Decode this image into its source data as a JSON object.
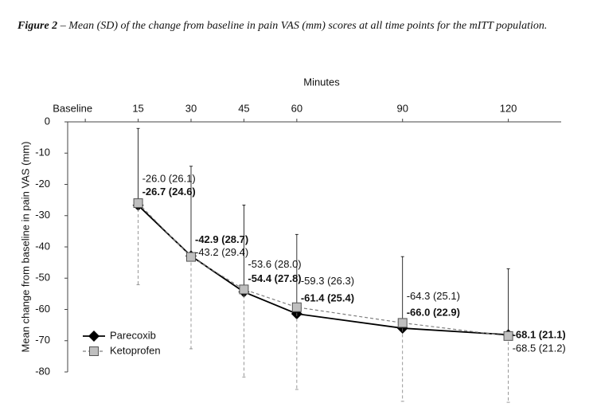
{
  "chart_data": {
    "type": "line",
    "figure_label": "Figure 2",
    "title": "– Mean (SD) of the change from baseline in pain VAS (mm) scores at all time points for the mITT population.",
    "x_label": "Minutes",
    "y_label": "Mean change from baseline in pain VAS (mm)",
    "x": [
      15,
      30,
      45,
      60,
      90,
      120
    ],
    "xlim": [
      -5,
      135
    ],
    "xticks": [
      {
        "value": 0,
        "label": "Baseline"
      },
      15,
      30,
      45,
      60,
      90,
      120
    ],
    "ylim": [
      0,
      -80
    ],
    "yticks": [
      0,
      -10,
      -20,
      -30,
      -40,
      -50,
      -60,
      -70,
      -80
    ],
    "legend": "bottom-left",
    "series": [
      {
        "name": "Parecoxib",
        "color": "#000000",
        "marker": "diamond",
        "line": "solid",
        "error_direction": "up",
        "values": [
          -26.7,
          -42.9,
          -54.4,
          -61.4,
          -66.0,
          -68.1
        ],
        "errors": [
          24.6,
          28.7,
          27.8,
          25.4,
          22.9,
          21.1
        ],
        "value_labels": [
          "-26.7 (24.6)",
          "-42.9 (28.7)",
          "-54.4 (27.8)",
          "-61.4 (25.4)",
          "-66.0 (22.9)",
          "-68.1 (21.1)"
        ]
      },
      {
        "name": "Ketoprofen",
        "color": "#7f7f7f",
        "marker": "square",
        "line": "dashed",
        "error_direction": "down",
        "values": [
          -26.0,
          -43.2,
          -53.6,
          -59.3,
          -64.3,
          -68.5
        ],
        "errors": [
          26.1,
          29.4,
          28.0,
          26.3,
          25.1,
          21.2
        ],
        "value_labels": [
          "-26.0 (26.1)",
          "-43.2 (29.4)",
          "-53.6 (28.0)",
          "-59.3 (26.3)",
          "-64.3 (25.1)",
          "-68.5 (21.2)"
        ]
      }
    ]
  }
}
